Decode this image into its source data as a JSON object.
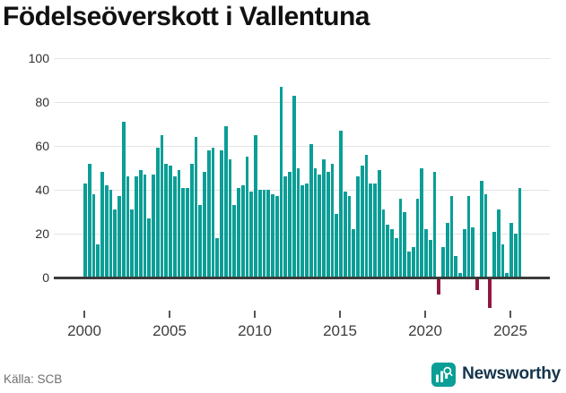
{
  "header": {
    "title": "Födelseöverskott i Vallentuna"
  },
  "footer": {
    "source": "Källa: SCB",
    "brand": "Newsworthy"
  },
  "chart_data": {
    "type": "bar",
    "title": "Födelseöverskott i Vallentuna",
    "frequency": "quarterly",
    "x_start_year": 2000,
    "x_tick_labels": [
      "2000",
      "2005",
      "2010",
      "2015",
      "2020",
      "2025"
    ],
    "y_ticks": [
      0,
      20,
      40,
      60,
      80,
      100
    ],
    "ylim": [
      -15,
      100
    ],
    "grid": true,
    "legend": "none",
    "values": [
      43,
      52,
      38,
      15,
      48,
      42,
      40,
      31,
      37,
      71,
      46,
      31,
      46,
      49,
      47,
      27,
      47,
      59,
      65,
      52,
      51,
      46,
      49,
      41,
      41,
      52,
      64,
      33,
      48,
      58,
      59,
      18,
      58,
      69,
      54,
      33,
      41,
      42,
      55,
      39,
      65,
      40,
      40,
      40,
      38,
      37,
      87,
      46,
      48,
      83,
      50,
      42,
      43,
      61,
      50,
      47,
      54,
      48,
      52,
      29,
      67,
      39,
      37,
      22,
      46,
      51,
      56,
      43,
      43,
      49,
      31,
      24,
      22,
      18,
      36,
      30,
      12,
      14,
      36,
      50,
      22,
      17,
      48,
      -7,
      14,
      25,
      37,
      10,
      2,
      22,
      37,
      23,
      -5,
      44,
      38,
      -13,
      21,
      31,
      15,
      2,
      25,
      20,
      41
    ],
    "colors": {
      "positive": "#0a9e96",
      "negative": "#8e1a3f"
    }
  }
}
